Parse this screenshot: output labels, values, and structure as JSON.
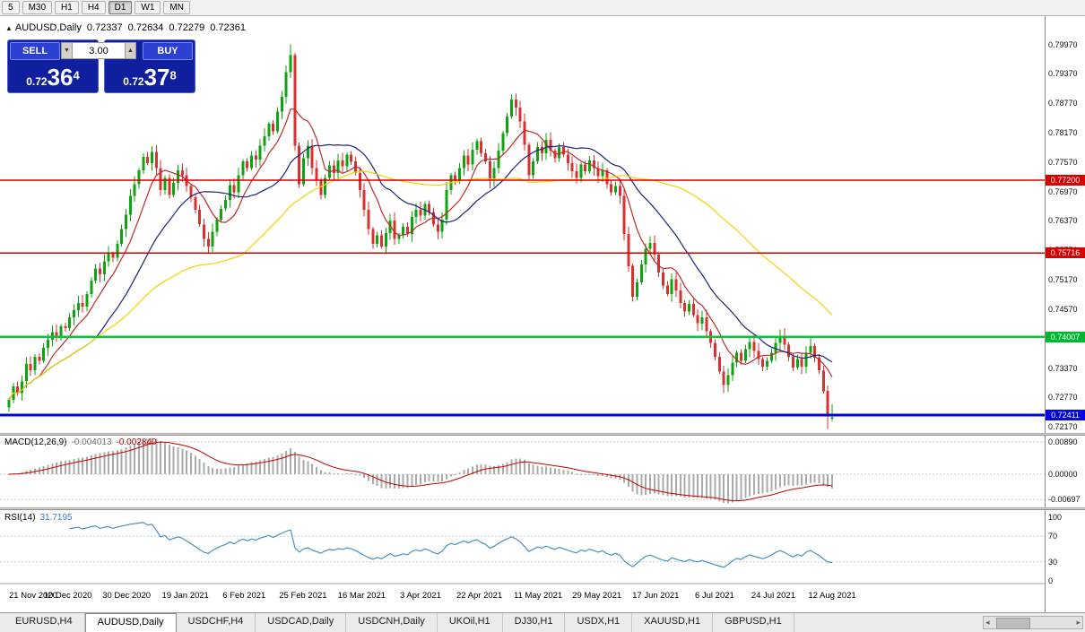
{
  "toolbar": {
    "timeframes": [
      {
        "label": "5",
        "active": false
      },
      {
        "label": "M30",
        "active": false
      },
      {
        "label": "H1",
        "active": false
      },
      {
        "label": "H4",
        "active": false
      },
      {
        "label": "D1",
        "active": true
      },
      {
        "label": "W1",
        "active": false
      },
      {
        "label": "MN",
        "active": false
      }
    ]
  },
  "header": {
    "symbol": "AUDUSD,Daily",
    "open": "0.72337",
    "high": "0.72634",
    "low": "0.72279",
    "close": "0.72361"
  },
  "trade_panel": {
    "sell_label": "SELL",
    "buy_label": "BUY",
    "volume": "3.00",
    "sell_price_small": "0.72",
    "sell_price_big": "36",
    "sell_price_sup": "4",
    "buy_price_small": "0.72",
    "buy_price_big": "37",
    "buy_price_sup": "8"
  },
  "icons": {
    "symbol_marker": "▲",
    "spin_down": "▼",
    "spin_up": "▲",
    "scroll_left": "◂",
    "scroll_right": "▸"
  },
  "price_axis": {
    "labels": [
      "0.79970",
      "0.79370",
      "0.78770",
      "0.78170",
      "0.77570",
      "0.76970",
      "0.76370",
      "0.75770",
      "0.75170",
      "0.74570",
      "0.73970",
      "0.73370",
      "0.72770",
      "0.72170"
    ]
  },
  "tags": [
    {
      "text": "0.77200",
      "price": 0.772,
      "bg": "#d40000"
    },
    {
      "text": "0.75716",
      "price": 0.75716,
      "bg": "#d40000"
    },
    {
      "text": "0.74007",
      "price": 0.74007,
      "bg": "#00b830"
    },
    {
      "text": "0.72411",
      "price": 0.72411,
      "bg": "#0000e0"
    }
  ],
  "panes": {
    "macd_label": "MACD(12,26,9)",
    "macd_value_main": "-0.004013",
    "macd_value_signal": "-0.002840",
    "macd_axis": [
      "0.00890",
      "0.00000",
      "-0.00697"
    ],
    "rsi_label": "RSI(14)",
    "rsi_value": "31.7195",
    "rsi_axis": [
      "100",
      "70",
      "30",
      "0"
    ]
  },
  "tabs": {
    "items": [
      "EURUSD,H4",
      "AUDUSD,Daily",
      "USDCHF,H4",
      "USDCAD,Daily",
      "USDCNH,Daily",
      "UKOil,H1",
      "DJ30,H1",
      "USDX,H1",
      "XAUUSD,H1",
      "GBPUSD,H1"
    ],
    "active": "AUDUSD,Daily"
  },
  "chart_data": {
    "type": "candlestick",
    "symbol": "AUDUSD",
    "timeframe": "Daily",
    "title": "AUDUSD,Daily",
    "y_range": [
      0.72045,
      0.80546
    ],
    "x_tick_labels": [
      "21 Nov 2020",
      "10 Dec 2020",
      "30 Dec 2020",
      "19 Jan 2021",
      "6 Feb 2021",
      "25 Feb 2021",
      "16 Mar 2021",
      "3 Apr 2021",
      "22 Apr 2021",
      "11 May 2021",
      "29 May 2021",
      "17 Jun 2021",
      "6 Jul 2021",
      "24 Jul 2021",
      "12 Aug 2021"
    ],
    "current_bar": {
      "open": 0.72337,
      "high": 0.72634,
      "low": 0.72279,
      "close": 0.72361
    },
    "up_color": "#0fa30f",
    "down_color": "#d93030",
    "closes": [
      0.7272,
      0.73,
      0.7286,
      0.731,
      0.7345,
      0.7332,
      0.736,
      0.7352,
      0.7378,
      0.7395,
      0.741,
      0.7402,
      0.7422,
      0.7418,
      0.744,
      0.7455,
      0.747,
      0.7462,
      0.7488,
      0.7515,
      0.754,
      0.7528,
      0.7555,
      0.757,
      0.7562,
      0.759,
      0.762,
      0.765,
      0.7688,
      0.7712,
      0.774,
      0.7768,
      0.7755,
      0.7778,
      0.7745,
      0.77,
      0.7725,
      0.769,
      0.7715,
      0.774,
      0.773,
      0.7708,
      0.7685,
      0.766,
      0.763,
      0.76,
      0.7585,
      0.7615,
      0.764,
      0.7662,
      0.768,
      0.771,
      0.7695,
      0.773,
      0.7758,
      0.7745,
      0.777,
      0.7762,
      0.779,
      0.781,
      0.7835,
      0.782,
      0.786,
      0.789,
      0.794,
      0.7975,
      0.779,
      0.7712,
      0.7765,
      0.779,
      0.7745,
      0.772,
      0.769,
      0.7725,
      0.775,
      0.7735,
      0.776,
      0.7748,
      0.7772,
      0.7758,
      0.7735,
      0.77,
      0.766,
      0.762,
      0.759,
      0.7608,
      0.7585,
      0.7612,
      0.7638,
      0.76,
      0.7608,
      0.7625,
      0.761,
      0.7645,
      0.766,
      0.7648,
      0.7672,
      0.7655,
      0.763,
      0.7615,
      0.764,
      0.77,
      0.773,
      0.7718,
      0.7745,
      0.777,
      0.7752,
      0.7782,
      0.78,
      0.7775,
      0.7758,
      0.772,
      0.7745,
      0.778,
      0.7816,
      0.785,
      0.7885,
      0.7868,
      0.784,
      0.7792,
      0.773,
      0.7758,
      0.7788,
      0.7775,
      0.7802,
      0.778,
      0.7765,
      0.7788,
      0.7772,
      0.7755,
      0.7738,
      0.7725,
      0.7752,
      0.7738,
      0.776,
      0.7745,
      0.7728,
      0.774,
      0.7712,
      0.7695,
      0.7708,
      0.7688,
      0.761,
      0.7545,
      0.7482,
      0.7512,
      0.7548,
      0.758,
      0.7592,
      0.7568,
      0.7532,
      0.7505,
      0.7488,
      0.7518,
      0.7495,
      0.747,
      0.7452,
      0.7468,
      0.7445,
      0.7428,
      0.744,
      0.7412,
      0.7388,
      0.736,
      0.733,
      0.7302,
      0.7322,
      0.7348,
      0.7368,
      0.7352,
      0.7375,
      0.739,
      0.7372,
      0.7355,
      0.734,
      0.7352,
      0.7368,
      0.7388,
      0.7402,
      0.7385,
      0.736,
      0.7338,
      0.7355,
      0.734,
      0.7368,
      0.7382,
      0.7358,
      0.7332,
      0.729,
      0.7244,
      0.7236
    ],
    "wick_overrides": {
      "65": {
        "h": 0.7997
      },
      "189": {
        "l": 0.72125
      },
      "190": {
        "o": 0.72337,
        "h": 0.72634,
        "l": 0.72279,
        "c": 0.72361
      }
    },
    "moving_averages": [
      {
        "period": 8,
        "color": "#c22828"
      },
      {
        "period": 21,
        "color": "#1a237e"
      },
      {
        "period": 55,
        "color": "#f5d300"
      }
    ],
    "hlines": [
      {
        "price": 0.772,
        "color": "#d40000",
        "width": 1.5
      },
      {
        "price": 0.75716,
        "color": "#d40000",
        "width": 1.5
      },
      {
        "price": 0.74007,
        "color": "#00c837",
        "width": 2.5
      },
      {
        "price": 0.72411,
        "color": "#0000f0",
        "width": 3
      }
    ],
    "indicators": [
      {
        "type": "MACD",
        "params": [
          12,
          26,
          9
        ],
        "value_main": -0.004013,
        "value_signal": -0.00284,
        "histogram_color": "#ababab",
        "signal_color": "#c80000",
        "range": [
          -0.00915,
          0.01063
        ],
        "levels": [
          0.0089,
          0,
          -0.00697
        ]
      },
      {
        "type": "RSI",
        "params": [
          14
        ],
        "value": 31.7195,
        "color": "#4a90c4",
        "range": [
          -4,
          111
        ],
        "levels": [
          70,
          30
        ]
      }
    ]
  }
}
